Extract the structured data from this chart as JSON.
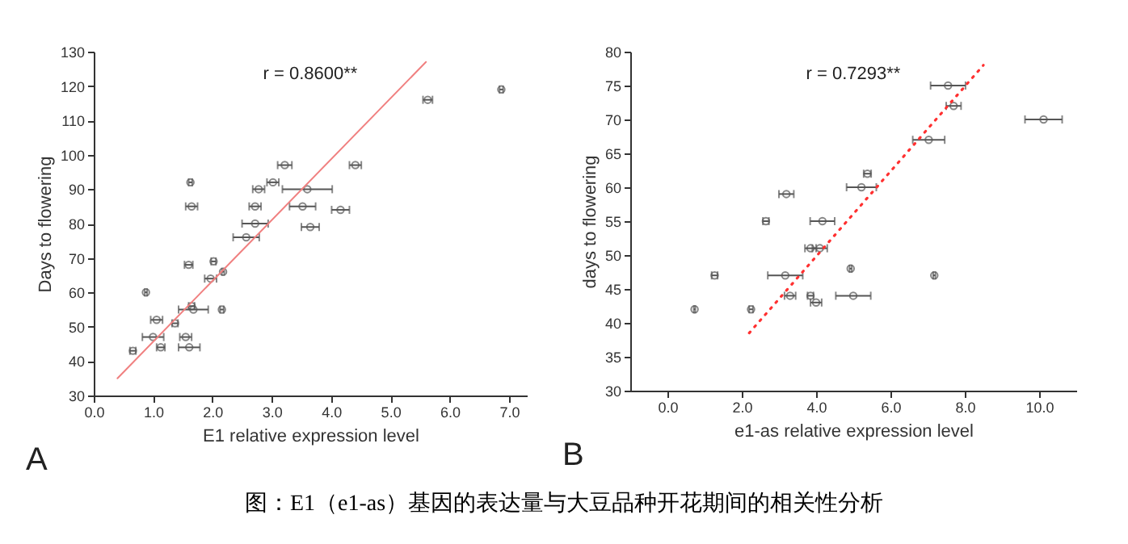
{
  "chart_data": [
    {
      "type": "scatter",
      "xlabel": "E1 relative expression level",
      "ylabel": "Days to flowering",
      "xlim": [
        0,
        7.3
      ],
      "ylim": [
        30,
        130
      ],
      "xticks": [
        {
          "value": 0,
          "label": "0.0"
        },
        {
          "value": 1,
          "label": "1.0"
        },
        {
          "value": 2,
          "label": "2.0"
        },
        {
          "value": 3,
          "label": "3.0"
        },
        {
          "value": 4,
          "label": "4.0"
        },
        {
          "value": 5,
          "label": "5.0"
        },
        {
          "value": 6,
          "label": "6.0"
        },
        {
          "value": 7,
          "label": "7.0"
        }
      ],
      "yticks": [
        30,
        40,
        50,
        60,
        70,
        80,
        90,
        100,
        110,
        120,
        130
      ],
      "series": [
        {
          "type": "scatter",
          "marker": "circle",
          "color": "#555555",
          "x": [
            6.87,
            5.63,
            4.41,
            3.22,
            3.02,
            1.63,
            2.78,
            3.6,
            1.65,
            2.72,
            3.52,
            4.16,
            2.72,
            3.65,
            2.57,
            1.6,
            2.02,
            2.18,
            1.97,
            0.88,
            1.65,
            1.68,
            2.16,
            1.06,
            1.37,
            1.0,
            1.55,
            1.13,
            1.61,
            0.66
          ],
          "values": [
            119,
            116,
            97,
            97,
            92,
            92,
            90,
            90,
            85,
            85,
            85,
            84,
            80,
            79,
            76,
            68,
            69,
            66,
            64,
            60,
            56,
            55,
            55,
            52,
            51,
            47,
            47,
            44,
            44,
            43
          ],
          "xerrors": [
            0.03,
            0.08,
            0.1,
            0.12,
            0.1,
            0.03,
            0.1,
            0.42,
            0.1,
            0.1,
            0.22,
            0.15,
            0.22,
            0.15,
            0.22,
            0.07,
            0.04,
            0.02,
            0.1,
            0.02,
            0.05,
            0.25,
            0.03,
            0.1,
            0.05,
            0.18,
            0.1,
            0.07,
            0.18,
            0.05
          ]
        },
        {
          "type": "line",
          "color": "#f08080",
          "line_style": "solid",
          "x": [
            0.4,
            5.6
          ],
          "values": [
            35,
            127
          ]
        }
      ],
      "annotations": [
        "r = 0.8600**",
        "A"
      ]
    },
    {
      "type": "scatter",
      "xlabel": "e1-as relative expression level",
      "ylabel": "days to flowering",
      "xlim": [
        -1,
        11
      ],
      "ylim": [
        30,
        80
      ],
      "xticks": [
        {
          "value": 0,
          "label": "0.0"
        },
        {
          "value": 2,
          "label": "2.0"
        },
        {
          "value": 4,
          "label": "4.0"
        },
        {
          "value": 6,
          "label": "6.0"
        },
        {
          "value": 8,
          "label": "8.0"
        },
        {
          "value": 10,
          "label": "10.0"
        }
      ],
      "yticks": [
        30,
        35,
        40,
        45,
        50,
        55,
        60,
        65,
        70,
        75,
        80
      ],
      "series": [
        {
          "type": "scatter",
          "marker": "circle",
          "color": "#555555",
          "x": [
            7.55,
            7.7,
            10.12,
            7.03,
            5.38,
            5.22,
            3.2,
            2.65,
            4.17,
            3.85,
            4.1,
            4.93,
            1.27,
            3.17,
            7.18,
            3.3,
            3.85,
            5.0,
            4.0,
            0.73,
            2.25
          ],
          "values": [
            75,
            72,
            70,
            67,
            62,
            60,
            59,
            55,
            55,
            51,
            51,
            48,
            47,
            47,
            47,
            44,
            44,
            44,
            43,
            42,
            42
          ],
          "xerrors": [
            0.47,
            0.2,
            0.5,
            0.43,
            0.1,
            0.4,
            0.2,
            0.08,
            0.33,
            0.15,
            0.2,
            0.03,
            0.08,
            0.47,
            0.03,
            0.15,
            0.08,
            0.47,
            0.15,
            0.02,
            0.05
          ]
        },
        {
          "type": "line",
          "color": "#ff3030",
          "line_style": "dotted",
          "x": [
            2.2,
            8.5
          ],
          "values": [
            38.5,
            78
          ]
        }
      ],
      "annotations": [
        "r = 0.7293**",
        "B"
      ]
    },
    {
      "type": "other",
      "annotations": [
        "图：E1（e1-as）基因的表达量与大豆品种开花期间的相关性分析"
      ]
    }
  ]
}
